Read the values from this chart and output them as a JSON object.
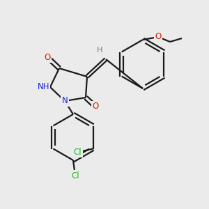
{
  "bg_color": "#ebebeb",
  "bond_color": "#1a1a1a",
  "atom_colors": {
    "O": "#cc2200",
    "N": "#1122dd",
    "Cl": "#22bb22",
    "H": "#558888",
    "C": "#1a1a1a"
  },
  "figsize": [
    3.0,
    3.0
  ],
  "dpi": 100
}
